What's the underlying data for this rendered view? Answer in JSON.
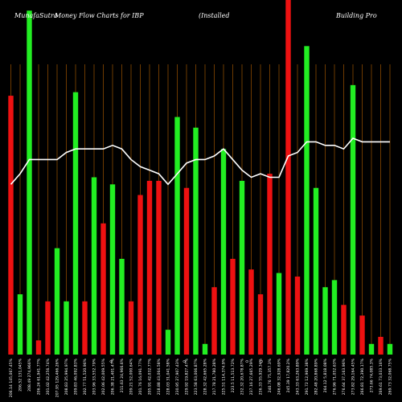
{
  "header": {
    "brand": "MunafaSutra",
    "chart_title": "Money Flow  Charts for IBP",
    "company": "(Installed",
    "company_rest": "Building Pro"
  },
  "colors": {
    "background": "#000000",
    "up": "#22ee22",
    "down": "#ee1111",
    "line": "#ffffff",
    "grid": "#8a4a00"
  },
  "chart_data": {
    "type": "bar",
    "title": "Money Flow  Charts for IBP",
    "ylim": [
      0,
      100
    ],
    "grid": true,
    "categories": [
      "206.14 145,067.45%",
      "206.52 131,045%",
      "208.49 274,966%",
      "206.24 61,941.77%",
      "201.02 42,256.74%",
      "207.95 129,466.26%",
      "208.83 25,994.97%",
      "209.83 46,092.83%",
      "202.77 51,520.96%",
      "203.96 33,552.79%",
      "202.06 42,009.55%",
      "206.38 21,401.47%",
      "211.63 24,966.6%",
      "209.21 52,000.64%",
      "201.76 16,091.77%",
      "205.91 42,032.77%",
      "218.88 43,064.58%",
      "228.03 31,041.58%",
      "230.95 27,907.43%",
      "229.92 19,827.47%",
      "223.58 63,006.87%",
      "228.32 42,665.28%",
      "217.78 21,780.28%",
      "225.51 114,374.9%",
      "223.5 11,513.72%",
      "232.32 20,678.87%",
      "237.16 27,665.29%",
      "236.33 55,929.34%",
      "240.76 75,357.3%",
      "246.08 32,928.69%",
      "245.39 17,820.2%",
      "243.33 63,263.89%",
      "291.72 12,969.38%",
      "282.48 20,868.89%",
      "264.12 5,818.08%",
      "276.96 71,052.63%",
      "276.64 37,163.96%",
      "273.82 29,164.45%",
      "266.81 72,390.17%",
      "273.66 74,085.3%",
      "269.61 73,033.16%",
      "269.73 32,068.75%"
    ],
    "colors": [
      "down",
      "up",
      "up",
      "down",
      "down",
      "up",
      "up",
      "up",
      "down",
      "up",
      "down",
      "up",
      "up",
      "down",
      "down",
      "down",
      "down",
      "up",
      "up",
      "down",
      "up",
      "up",
      "down",
      "up",
      "down",
      "up",
      "down",
      "down",
      "down",
      "up",
      "down",
      "down",
      "up",
      "up",
      "up",
      "up",
      "down",
      "up",
      "down",
      "up",
      "down",
      "up"
    ],
    "values": [
      73,
      17,
      97,
      4,
      15,
      30,
      15,
      74,
      15,
      50,
      37,
      48,
      27,
      15,
      45,
      49,
      49,
      7,
      67,
      47,
      64,
      3,
      19,
      58,
      27,
      49,
      24,
      17,
      51,
      23,
      100,
      22,
      87,
      47,
      19,
      21,
      14,
      76,
      11,
      3,
      5,
      3
    ],
    "series": [
      {
        "name": "",
        "type": "line",
        "values": [
          48,
          51,
          55,
          55,
          55,
          55,
          57,
          58,
          58,
          58,
          58,
          59,
          58,
          55,
          53,
          52,
          51,
          48,
          51,
          54,
          55,
          55,
          56,
          58,
          55,
          52,
          50,
          51,
          50,
          50,
          56,
          57,
          60,
          60,
          59,
          59,
          58,
          61,
          60,
          60,
          60,
          60
        ]
      }
    ],
    "mid_markers": [
      "0",
      "0",
      "0",
      "0"
    ]
  }
}
